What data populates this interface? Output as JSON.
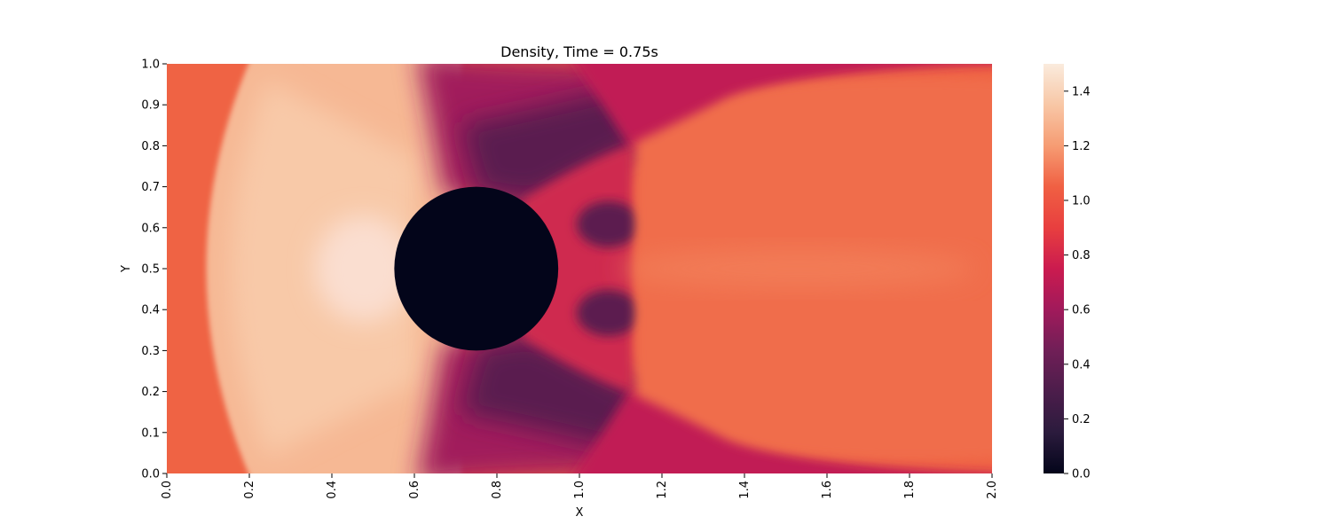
{
  "chart_data": {
    "type": "heatmap",
    "title": "Density, Time = 0.75s",
    "xlabel": "X",
    "ylabel": "Y",
    "xlim": [
      0,
      2
    ],
    "ylim": [
      0,
      1
    ],
    "x_ticks": [
      0.0,
      0.2,
      0.4,
      0.6,
      0.8,
      1.0,
      1.2,
      1.4,
      1.6,
      1.8,
      2.0
    ],
    "x_tick_labels": [
      "0.0",
      "0.2",
      "0.4",
      "0.6",
      "0.8",
      "1.0",
      "1.2",
      "1.4",
      "1.6",
      "1.8",
      "2.0"
    ],
    "y_ticks": [
      0.0,
      0.1,
      0.2,
      0.3,
      0.4,
      0.5,
      0.6,
      0.7,
      0.8,
      0.9,
      1.0
    ],
    "y_tick_labels": [
      "0.0",
      "0.1",
      "0.2",
      "0.3",
      "0.4",
      "0.5",
      "0.6",
      "0.7",
      "0.8",
      "0.9",
      "1.0"
    ],
    "colorbar": {
      "range": [
        0,
        1.5
      ],
      "ticks": [
        0.0,
        0.2,
        0.4,
        0.6,
        0.8,
        1.0,
        1.2,
        1.4
      ],
      "tick_labels": [
        "0.0",
        "0.2",
        "0.4",
        "0.6",
        "0.8",
        "1.0",
        "1.2",
        "1.4"
      ],
      "colormap": "rocket",
      "colormap_stops": [
        "#03051a",
        "#2b1b3d",
        "#4c1d4b",
        "#701f57",
        "#a11a5b",
        "#cb1b4f",
        "#e83f3f",
        "#f06043",
        "#f69c73",
        "#f8c7a6",
        "#faebdd"
      ]
    },
    "obstacle": {
      "shape": "circle",
      "center": [
        0.75,
        0.5
      ],
      "radius": 0.2,
      "value": 0.0
    },
    "field_description": {
      "freestream_value": 1.0,
      "max_value": 1.5,
      "bow_shock_apex_x": 0.1,
      "grid": false
    }
  }
}
